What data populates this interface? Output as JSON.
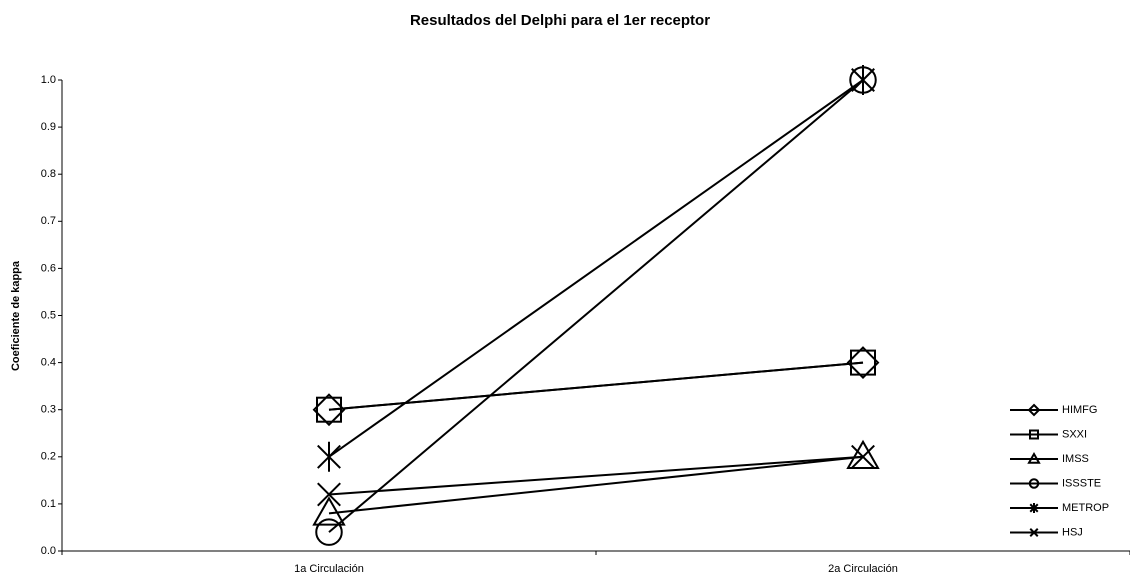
{
  "chart_data": {
    "type": "line",
    "title": "Resultados del Delphi para el 1er receptor",
    "y_label": "Coeficiente de kappa",
    "categories": [
      "1a Circulación",
      "2a Circulación"
    ],
    "series": [
      {
        "name": "HIMFG",
        "color": "#000000",
        "marker": "diamond",
        "values": [
          0.3,
          0.4
        ]
      },
      {
        "name": "SXXI",
        "color": "#000000",
        "marker": "square",
        "values": [
          0.3,
          0.4
        ]
      },
      {
        "name": "IMSS",
        "color": "#000000",
        "marker": "triangle",
        "values": [
          0.08,
          0.2
        ]
      },
      {
        "name": "ISSSTE",
        "color": "#000000",
        "marker": "circle",
        "values": [
          0.04,
          1.0
        ]
      },
      {
        "name": "METROP",
        "color": "#000000",
        "marker": "star",
        "values": [
          0.2,
          1.0
        ]
      },
      {
        "name": "HSJ",
        "color": "#000000",
        "marker": "x",
        "values": [
          0.12,
          0.2
        ]
      }
    ],
    "ylim": [
      0,
      1
    ],
    "yticks": [
      {
        "value": 0,
        "label": "0.0"
      },
      0.1,
      0.2,
      0.3,
      0.4,
      0.5,
      0.6,
      0.7,
      0.8,
      0.9,
      {
        "value": 1,
        "label": "1.0"
      }
    ],
    "grid": false,
    "legend": "right"
  }
}
